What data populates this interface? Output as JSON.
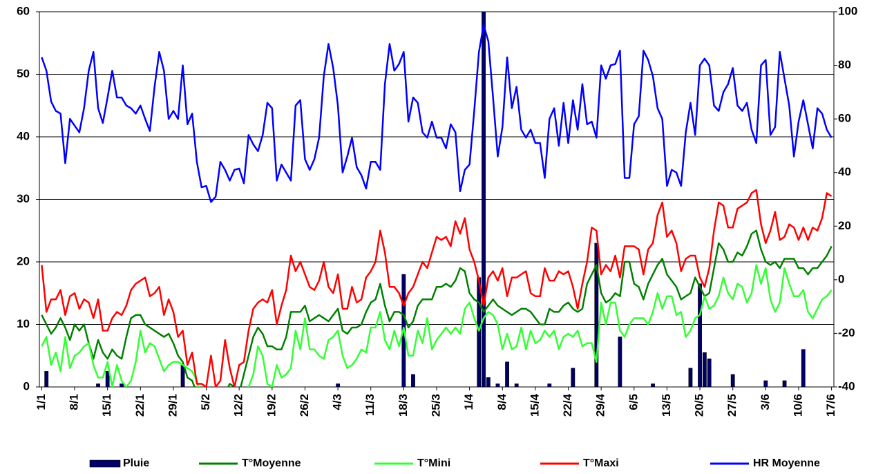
{
  "chart_data": {
    "type": "line",
    "categories": [
      "1/1",
      null,
      null,
      null,
      null,
      null,
      null,
      "8/1",
      null,
      null,
      null,
      null,
      null,
      null,
      "15/1",
      null,
      null,
      null,
      null,
      null,
      null,
      "22/1",
      null,
      null,
      null,
      null,
      null,
      null,
      "29/1",
      null,
      null,
      null,
      null,
      null,
      null,
      "5/2",
      null,
      null,
      null,
      null,
      null,
      null,
      "12/2",
      null,
      null,
      null,
      null,
      null,
      null,
      "19/2",
      null,
      null,
      null,
      null,
      null,
      null,
      "26/2",
      null,
      null,
      null,
      null,
      null,
      null,
      "4/3",
      null,
      null,
      null,
      null,
      null,
      null,
      "11/3",
      null,
      null,
      null,
      null,
      null,
      null,
      "18/3",
      null,
      null,
      null,
      null,
      null,
      null,
      "25/3",
      null,
      null,
      null,
      null,
      null,
      null,
      "1/4",
      null,
      null,
      null,
      null,
      null,
      null,
      "8/4",
      null,
      null,
      null,
      null,
      null,
      null,
      "15/4",
      null,
      null,
      null,
      null,
      null,
      null,
      "22/4",
      null,
      null,
      null,
      null,
      null,
      null,
      "29/4",
      null,
      null,
      null,
      null,
      null,
      null,
      "6/5",
      null,
      null,
      null,
      null,
      null,
      null,
      "13/5",
      null,
      null,
      null,
      null,
      null,
      null,
      "20/5",
      null,
      null,
      null,
      null,
      null,
      null,
      "27/5",
      null,
      null,
      null,
      null,
      null,
      null,
      "3/6",
      null,
      null,
      null,
      null,
      null,
      null,
      "10/6",
      null,
      null,
      null,
      null,
      null,
      null,
      "17/6"
    ],
    "ylim": [
      0,
      60
    ],
    "yticks": [
      0,
      10,
      20,
      30,
      40,
      50,
      60
    ],
    "y2lim": [
      -40,
      100
    ],
    "y2ticks": [
      -40,
      -20,
      0,
      20,
      40,
      60,
      80,
      100
    ],
    "grid": true,
    "legend": "bottom",
    "series": [
      {
        "name": "Pluie",
        "type": "bar",
        "color": "#000066",
        "values": [
          0,
          2.5,
          0,
          0,
          0,
          0,
          0,
          0,
          0,
          0,
          0,
          0,
          0.5,
          0,
          2.5,
          0,
          0,
          0.5,
          0,
          0,
          0,
          0,
          0,
          0,
          0,
          0,
          0,
          0,
          0,
          0,
          3.5,
          0,
          0,
          0,
          0,
          0,
          0,
          0,
          0,
          0,
          0,
          0,
          0,
          0,
          0,
          0,
          0,
          0,
          0,
          0,
          0,
          0,
          0,
          0,
          0,
          0,
          0,
          0,
          0,
          0,
          0,
          0,
          0,
          0.5,
          0,
          0,
          0,
          0,
          0,
          0,
          0,
          0,
          0,
          0,
          0,
          0,
          0,
          18,
          0,
          2,
          0,
          0,
          0,
          0,
          0,
          0,
          0,
          0,
          0,
          0,
          0,
          0,
          0,
          17.5,
          60,
          1.5,
          0,
          0.5,
          0,
          4,
          0,
          0.5,
          0,
          0,
          0,
          0,
          0,
          0,
          0.5,
          0,
          0,
          0,
          0,
          3,
          0,
          0,
          0,
          0,
          23,
          0,
          0,
          0,
          0,
          8,
          0,
          0,
          0,
          0,
          0,
          0,
          0.5,
          0,
          0,
          0,
          0,
          0,
          0,
          0,
          3,
          0,
          16.5,
          5.5,
          4.5,
          0,
          0,
          0,
          0,
          2,
          0,
          0,
          0,
          0,
          0,
          0,
          1,
          0,
          0,
          0,
          1,
          0,
          0,
          0,
          6,
          0,
          0,
          0,
          0,
          0,
          0
        ]
      },
      {
        "name": "T°Moyenne",
        "type": "line",
        "color": "#008000",
        "values": [
          11.5,
          10,
          8.5,
          9.5,
          11,
          9.5,
          7.5,
          10,
          9,
          10,
          7,
          4.5,
          7.5,
          5.5,
          4.5,
          6,
          5,
          4.5,
          8,
          11,
          11.5,
          11.5,
          10,
          9.5,
          9,
          8.5,
          8,
          8.5,
          7,
          5,
          4,
          1.5,
          1,
          -1,
          -2,
          -2,
          -1,
          -3,
          -2,
          -1,
          0.5,
          0,
          -1,
          2,
          5,
          8,
          9.5,
          8.5,
          6.5,
          6.5,
          6,
          6,
          8,
          12,
          12,
          12,
          13,
          10.5,
          11,
          11.5,
          11,
          10.5,
          11.5,
          12.5,
          9,
          8.5,
          9.5,
          9.5,
          10,
          12,
          13.5,
          14,
          16.5,
          13,
          10.5,
          12,
          12,
          11.5,
          9.5,
          10.5,
          13,
          14,
          14,
          14,
          16,
          16,
          16.5,
          16,
          17,
          19,
          18.5,
          15,
          14,
          13.5,
          12,
          13,
          14,
          13,
          12.5,
          12,
          11.5,
          12,
          12.5,
          12.5,
          12,
          11,
          10,
          10,
          12.5,
          12,
          12,
          13,
          13.5,
          12.5,
          12,
          12.5,
          16.5,
          18,
          19.5,
          15,
          13.5,
          14,
          15,
          14.5,
          20,
          20,
          16.5,
          16,
          14,
          16.5,
          18,
          19.5,
          20.5,
          18,
          17,
          16,
          14,
          14.5,
          15,
          17.5,
          16,
          14.5,
          15,
          19,
          23,
          22,
          20,
          20,
          21.5,
          21,
          22.5,
          24.5,
          25,
          22,
          20,
          19.5,
          20,
          19,
          20.5,
          20.5,
          20.5,
          19,
          19,
          18,
          19,
          19,
          20,
          21,
          22.5
        ]
      },
      {
        "name": "T°Mini",
        "type": "line",
        "color": "#33ff33",
        "values": [
          6.5,
          8,
          3.5,
          5.5,
          2.5,
          8,
          3,
          5,
          5.5,
          6.5,
          7,
          3.5,
          1.5,
          1.5,
          4,
          0,
          3.5,
          1,
          0,
          1,
          4,
          9,
          5.5,
          7,
          6.5,
          4.5,
          2.5,
          3.5,
          4,
          4,
          3.5,
          3,
          2.5,
          1,
          -2,
          -3,
          -4,
          -5,
          -4,
          -3,
          -2,
          -3,
          -4,
          -2,
          0,
          2,
          6.5,
          5,
          0.5,
          0,
          3.5,
          1.5,
          2,
          3,
          9,
          6,
          11,
          6,
          6,
          5,
          4.5,
          7.5,
          8,
          9,
          5,
          3,
          3.5,
          4.5,
          6,
          5.5,
          9.5,
          9.5,
          12,
          7.5,
          6,
          9,
          6.5,
          9.5,
          5,
          5,
          9,
          7,
          11,
          6,
          7.5,
          8.5,
          9.5,
          8.5,
          9.5,
          8.5,
          12.5,
          13.5,
          11,
          9,
          11,
          12,
          11.5,
          10,
          6,
          8.5,
          6,
          6.5,
          9.5,
          6,
          9,
          7,
          7.5,
          9,
          8,
          9,
          6,
          8,
          8.5,
          8,
          9,
          6.5,
          7,
          7,
          4,
          13.5,
          10,
          13.5,
          13.5,
          9,
          8,
          10,
          11,
          11,
          11,
          10,
          12,
          15,
          12.5,
          14.5,
          14.5,
          11.5,
          12,
          8,
          9,
          11,
          11.5,
          14.5,
          12.5,
          13,
          14.5,
          17.5,
          15,
          14,
          16.5,
          16,
          13.5,
          15,
          19.5,
          16.5,
          19,
          14,
          12,
          13.5,
          19,
          16.5,
          14.5,
          14.5,
          15.5,
          12,
          11,
          12.5,
          14,
          14.5,
          15.5
        ]
      },
      {
        "name": "T°Maxi",
        "type": "line",
        "color": "#ff0000",
        "values": [
          19.5,
          12,
          14,
          14,
          15.5,
          11.5,
          14.5,
          15,
          12.5,
          14,
          13.5,
          11,
          14,
          9,
          9,
          11,
          12,
          11.5,
          13,
          15.5,
          16.5,
          17,
          17.5,
          14.5,
          15,
          16,
          11.5,
          14,
          12,
          8,
          9,
          3.5,
          5.5,
          0.5,
          0.5,
          0,
          5,
          0,
          1,
          7.5,
          3,
          0,
          3.5,
          4,
          9,
          12.5,
          13.5,
          14,
          13.5,
          15.5,
          10,
          13,
          15.5,
          21,
          18.5,
          20,
          18,
          16,
          15.5,
          17,
          20,
          16,
          15,
          18,
          12.5,
          12.5,
          16,
          13.5,
          14,
          17.5,
          18.5,
          20,
          25,
          21.5,
          16,
          16,
          15,
          13,
          15,
          16,
          18,
          20,
          19,
          21.5,
          24,
          23.5,
          24,
          22.5,
          26.5,
          24.5,
          27,
          22,
          20,
          17,
          13,
          17.5,
          18.5,
          17,
          19,
          14.5,
          17.5,
          17.5,
          18,
          18.5,
          15,
          14.5,
          14.5,
          19,
          17,
          17,
          18.5,
          18,
          18.5,
          16,
          12.5,
          16.5,
          20,
          25.5,
          25,
          18,
          19.5,
          18.5,
          21,
          17.5,
          22.5,
          22.5,
          22.5,
          22,
          18,
          22,
          23,
          27.5,
          29.5,
          24,
          25,
          23,
          18.5,
          20.5,
          21,
          21,
          17.5,
          16,
          19,
          25,
          29.5,
          29,
          25.5,
          25.5,
          28.5,
          29,
          29.5,
          31,
          31.5,
          26,
          23,
          25,
          28,
          23.5,
          24,
          26,
          25.5,
          23.5,
          25.5,
          23.5,
          25.5,
          25,
          27,
          31,
          30.5
        ]
      },
      {
        "name": "HR Moyenne",
        "type": "line",
        "axis": "y2",
        "color": "#0000ff",
        "values": [
          83,
          78,
          66.5,
          63,
          62,
          43.5,
          60,
          57.5,
          55,
          64,
          78,
          85,
          64,
          58.5,
          68,
          78,
          68,
          68,
          65,
          64,
          62,
          65,
          60,
          55.5,
          72,
          85,
          78,
          60,
          63,
          60,
          80,
          58,
          62,
          44,
          34.5,
          35,
          29,
          31,
          44,
          41,
          37,
          41,
          41.5,
          36,
          54,
          50.5,
          48,
          54,
          66,
          64,
          37,
          43,
          40,
          37,
          65,
          67,
          45,
          41,
          45,
          53,
          76,
          88,
          79,
          65,
          40,
          46,
          53,
          42,
          39,
          34,
          44,
          44,
          41,
          73,
          88,
          78,
          80.5,
          85,
          59,
          68,
          66,
          55,
          53,
          59,
          53,
          53,
          49,
          58,
          55,
          33,
          41,
          43,
          63,
          85,
          95,
          89,
          68,
          46,
          57,
          83,
          64,
          72,
          56,
          53,
          56,
          51,
          51,
          38,
          60,
          64,
          50,
          66,
          51,
          67,
          56,
          73,
          58,
          59,
          53,
          80,
          75,
          80,
          80.5,
          85.5,
          38,
          38,
          58,
          61,
          85.5,
          82,
          76,
          64,
          60,
          35,
          41,
          40,
          35,
          55,
          66,
          54,
          80,
          82.5,
          80,
          65,
          63,
          70,
          73,
          79,
          65,
          63,
          66,
          56,
          51,
          80,
          82,
          54,
          57,
          85,
          75,
          65,
          46,
          59,
          67,
          58,
          49,
          64,
          62,
          56,
          53
        ]
      }
    ]
  }
}
